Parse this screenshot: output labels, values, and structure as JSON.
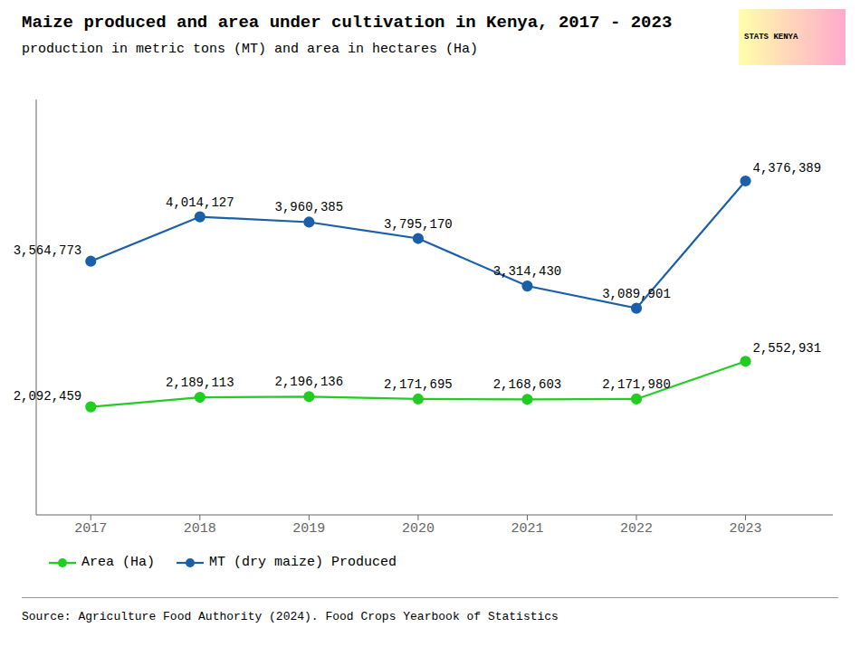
{
  "chart_data": {
    "type": "line",
    "title": "Maize produced and area under cultivation in Kenya, 2017 - 2023",
    "subtitle": "production in metric tons (MT) and area in hectares (Ha)",
    "annotations": [
      "Source: Agriculture Food Authority (2024). Food Crops Yearbook of Statistics",
      "STATS KENYA"
    ],
    "x": [
      2017,
      2018,
      2019,
      2020,
      2021,
      2022,
      2023
    ],
    "xlim": [
      2016.5,
      2023.8
    ],
    "xticks": [
      2017,
      2018,
      2019,
      2020,
      2021,
      2022,
      2023
    ],
    "ylim": [
      1000000,
      5200000
    ],
    "tick_labels": "x",
    "grid": false,
    "legend": "bottom",
    "data_labels": true,
    "series": [
      {
        "name": "MT (dry maize) Produced",
        "color": "#1a5fa8",
        "marker": "circle",
        "values": [
          3564773,
          4014127,
          3960385,
          3795170,
          3314430,
          3089901,
          4376389
        ],
        "value_labels": [
          "3,564,773",
          "4,014,127",
          "3,960,385",
          "3,795,170",
          "3,314,430",
          "3,089,901",
          "4,376,389"
        ]
      },
      {
        "name": "Area (Ha)",
        "color": "#22cc22",
        "marker": "circle",
        "values": [
          2092459,
          2189113,
          2196136,
          2171695,
          2168603,
          2171980,
          2552931
        ],
        "value_labels": [
          "2,092,459",
          "2,189,113",
          "2,196,136",
          "2,171,695",
          "2,168,603",
          "2,171,980",
          "2,552,931"
        ]
      }
    ]
  }
}
